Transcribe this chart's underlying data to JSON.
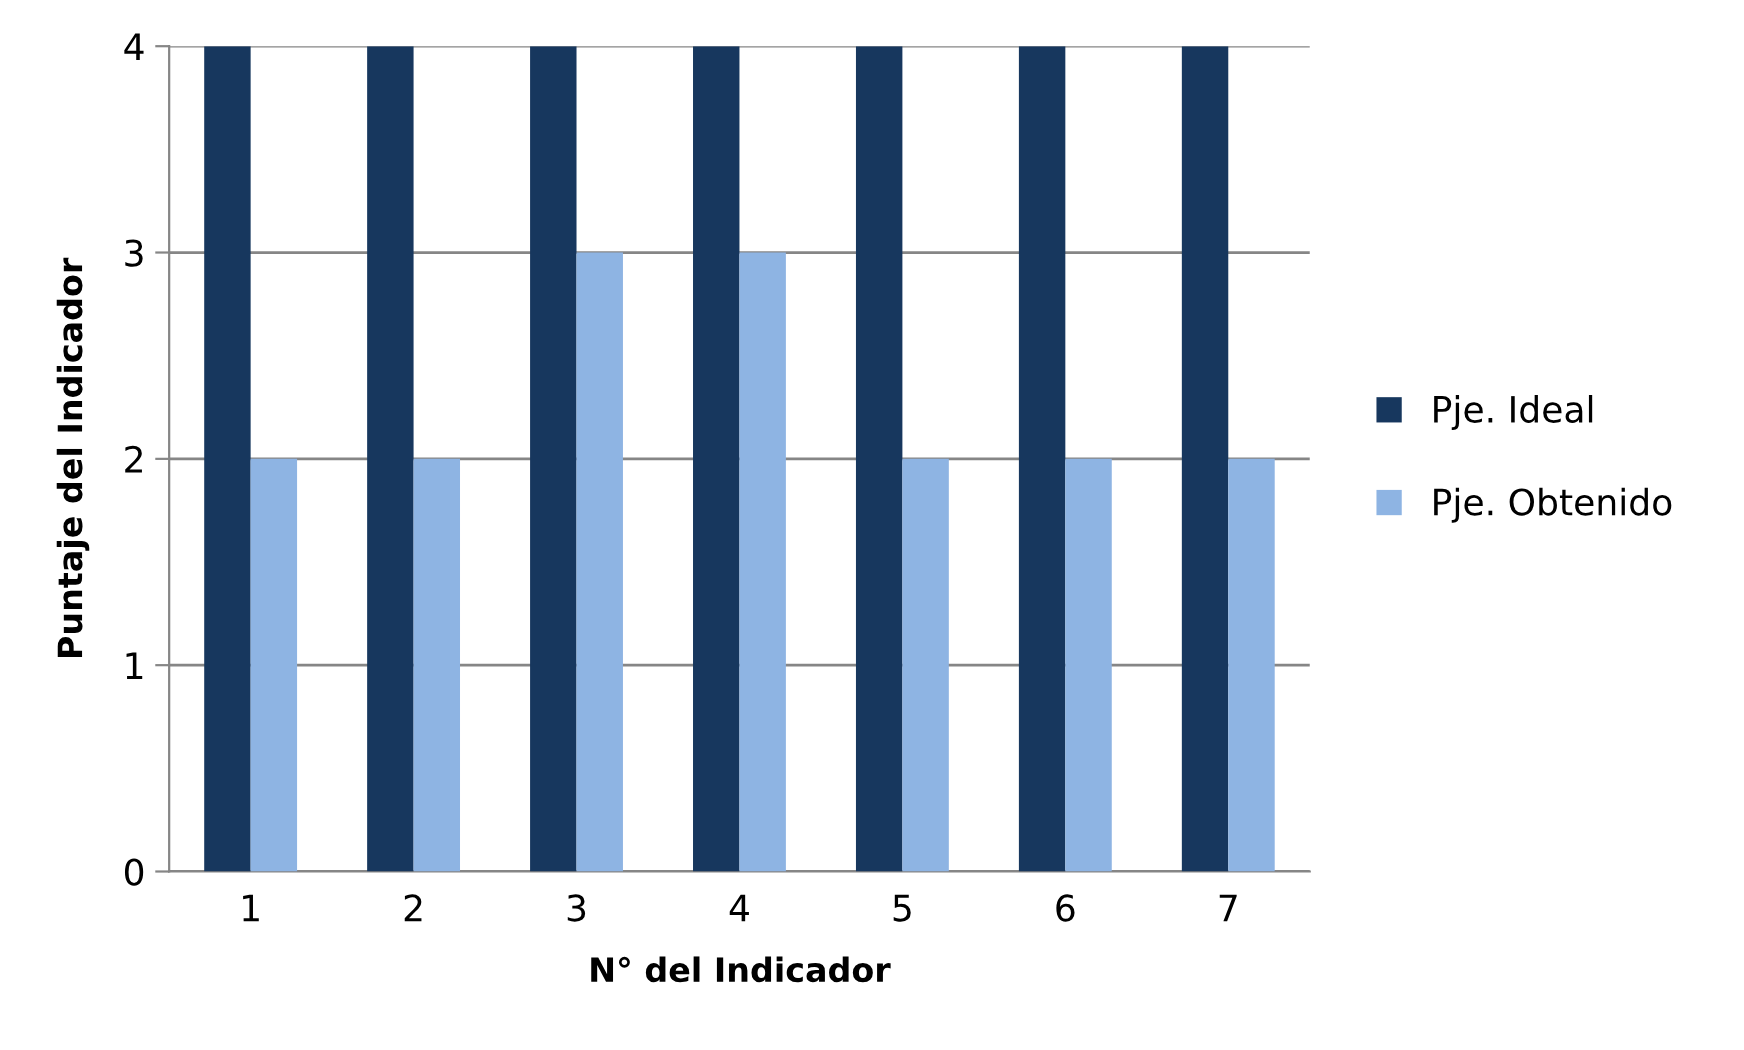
{
  "chart_data": {
    "type": "bar",
    "xlabel": "N° del Indicador",
    "ylabel": "Puntaje del Indicador",
    "categories": [
      "1",
      "2",
      "3",
      "4",
      "5",
      "6",
      "7"
    ],
    "series": [
      {
        "name": "Pje. Ideal",
        "color": "#17375e",
        "values": [
          4,
          4,
          4,
          4,
          4,
          4,
          4
        ]
      },
      {
        "name": "Pje. Obtenido",
        "color": "#8eb4e3",
        "values": [
          2,
          2,
          3,
          3,
          2,
          2,
          2
        ]
      }
    ],
    "ylim": [
      0,
      4
    ],
    "yticks": [
      0,
      1,
      2,
      3,
      4
    ],
    "grid": "y",
    "legend": "right"
  }
}
